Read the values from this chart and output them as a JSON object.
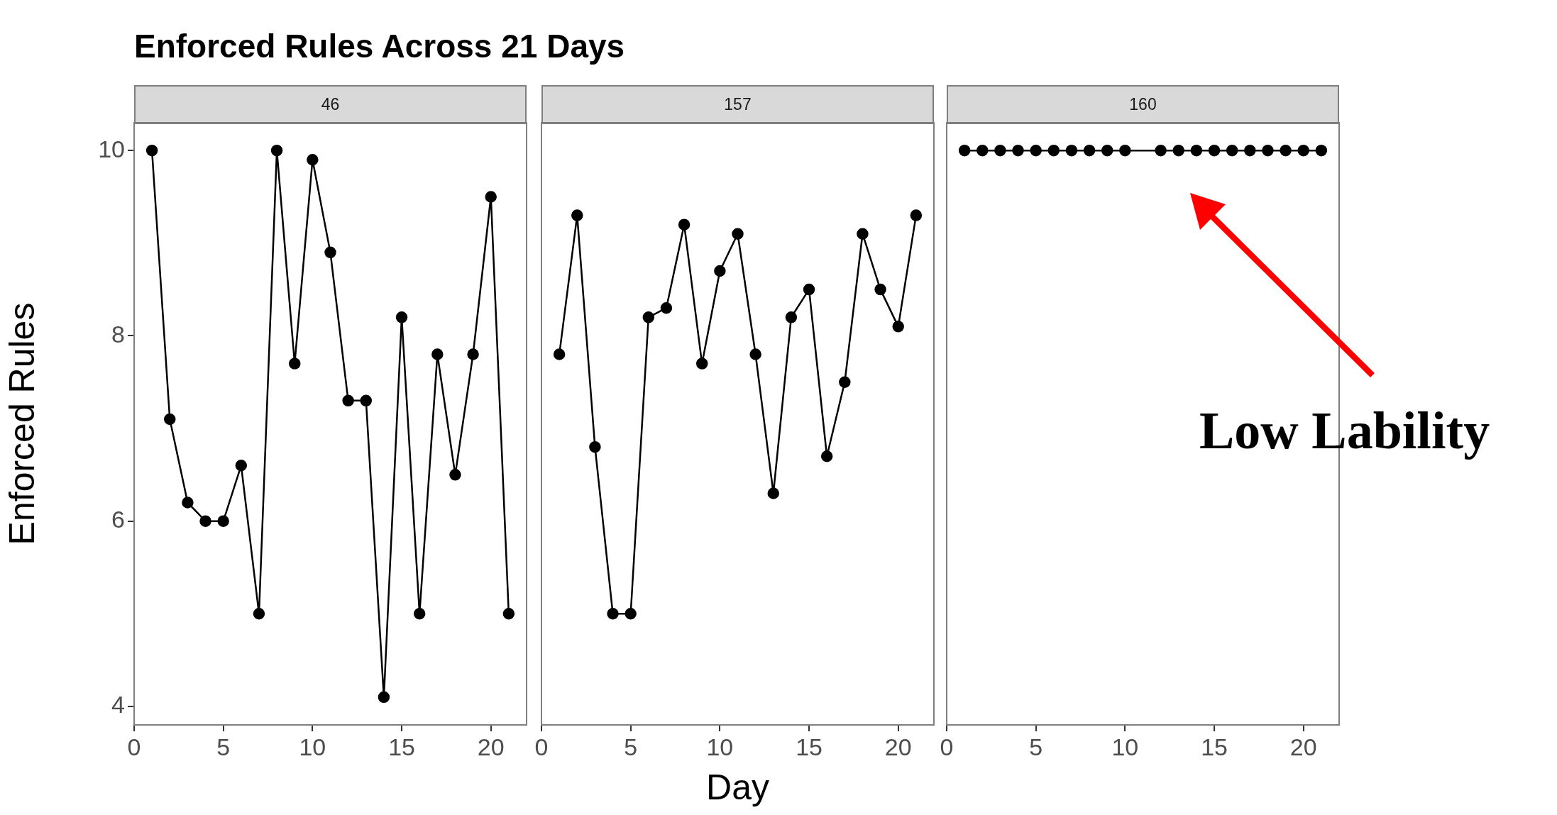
{
  "chart_data": [
    {
      "type": "line",
      "title": "Enforced Rules Across 21 Days",
      "subtitle": "46",
      "ylabel": "Enforced Rules",
      "x": [
        1,
        2,
        3,
        4,
        5,
        6,
        7,
        8,
        9,
        10,
        11,
        12,
        13,
        14,
        15,
        16,
        17,
        18,
        19,
        20,
        21
      ],
      "series": [
        {
          "color": "#000000",
          "values": [
            10,
            7.1,
            6.2,
            6,
            6,
            6.6,
            5,
            10,
            7.7,
            9.9,
            8.9,
            7.3,
            7.3,
            4.1,
            8.2,
            5,
            7.8,
            6.5,
            7.8,
            9.5,
            5
          ]
        }
      ],
      "xlim": [
        0,
        22
      ],
      "xticks": [
        0,
        5,
        10,
        15,
        20
      ],
      "ylim": [
        3.8,
        10.3
      ],
      "yticks": [
        4,
        6,
        8,
        10
      ],
      "grid": false,
      "legend": false,
      "marker": "circle",
      "line_style": "solid"
    },
    {
      "type": "line",
      "subtitle": "157",
      "xlabel": "Day",
      "x": [
        1,
        2,
        3,
        4,
        5,
        6,
        7,
        8,
        9,
        10,
        11,
        12,
        13,
        14,
        15,
        16,
        17,
        18,
        19,
        20,
        21
      ],
      "series": [
        {
          "color": "#000000",
          "values": [
            7.8,
            9.3,
            6.8,
            5,
            5,
            8.2,
            8.3,
            9.2,
            7.7,
            8.7,
            9.1,
            7.8,
            6.3,
            8.2,
            8.5,
            6.7,
            7.5,
            9.1,
            8.5,
            8.1,
            9.3
          ]
        }
      ],
      "xlim": [
        0,
        22
      ],
      "xticks": [
        0,
        5,
        10,
        15,
        20
      ],
      "ylim": [
        3.8,
        10.3
      ],
      "yticks": [
        4,
        6,
        8,
        10
      ],
      "tick_labels": "x",
      "grid": false,
      "legend": false,
      "marker": "circle",
      "line_style": "solid"
    },
    {
      "type": "line",
      "subtitle": "160",
      "annotations": [
        "Low Lability"
      ],
      "x": [
        1,
        2,
        3,
        4,
        5,
        6,
        7,
        8,
        9,
        10,
        12,
        13,
        14,
        15,
        16,
        17,
        18,
        19,
        20,
        21
      ],
      "series": [
        {
          "color": "#000000",
          "values": [
            10,
            10,
            10,
            10,
            10,
            10,
            10,
            10,
            10,
            10,
            10,
            10,
            10,
            10,
            10,
            10,
            10,
            10,
            10,
            10
          ]
        }
      ],
      "xlim": [
        0,
        22
      ],
      "xticks": [
        0,
        5,
        10,
        15,
        20
      ],
      "ylim": [
        3.8,
        10.3
      ],
      "yticks": [
        4,
        6,
        8,
        10
      ],
      "tick_labels": "x",
      "grid": false,
      "legend": false,
      "marker": "circle",
      "line_style": "solid"
    }
  ]
}
